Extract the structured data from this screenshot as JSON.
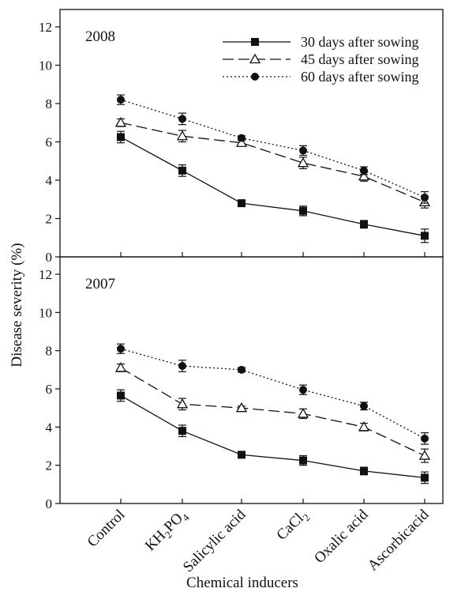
{
  "chart_data": {
    "type": "line",
    "xlabel": "Chemical inducers",
    "ylabel": "Disease severity (%)",
    "categories": [
      {
        "base": "Control",
        "sub": ""
      },
      {
        "base": "KH",
        "sub": "2",
        "mid": "PO",
        "sub2": "4"
      },
      {
        "base": "Salicylic acid",
        "sub": ""
      },
      {
        "base": "CaCl",
        "sub": "2"
      },
      {
        "base": "Oxalic acid",
        "sub": ""
      },
      {
        "base": "Ascorbicacid",
        "sub": ""
      }
    ],
    "legend_placement": "top-right",
    "series_styles": [
      {
        "marker": "square",
        "dash": "none"
      },
      {
        "marker": "triangle-open",
        "dash": "long-dash"
      },
      {
        "marker": "circle",
        "dash": "dot"
      }
    ],
    "panels": [
      {
        "label": "2008",
        "ylim": [
          0,
          12
        ],
        "yticks": [
          0,
          2,
          4,
          6,
          8,
          10,
          12
        ],
        "series": [
          {
            "name": "30 days after sowing",
            "values": [
              6.25,
              4.5,
              2.8,
              2.4,
              1.7,
              1.1
            ],
            "errors": [
              0.3,
              0.3,
              0.12,
              0.25,
              0.2,
              0.35
            ]
          },
          {
            "name": "45 days after sowing",
            "values": [
              7.0,
              6.3,
              5.95,
              4.9,
              4.2,
              2.85
            ],
            "errors": [
              0.2,
              0.3,
              0.15,
              0.3,
              0.25,
              0.3
            ]
          },
          {
            "name": "60 days after sowing",
            "values": [
              8.2,
              7.2,
              6.2,
              5.55,
              4.5,
              3.1
            ],
            "errors": [
              0.25,
              0.3,
              0.12,
              0.25,
              0.2,
              0.3
            ]
          }
        ]
      },
      {
        "label": "2007",
        "ylim": [
          0,
          12
        ],
        "yticks": [
          0,
          2,
          4,
          6,
          8,
          10,
          12
        ],
        "series": [
          {
            "name": "30 days after sowing",
            "values": [
              5.65,
              3.8,
              2.55,
              2.25,
              1.7,
              1.35
            ],
            "errors": [
              0.3,
              0.3,
              0.12,
              0.25,
              0.2,
              0.3
            ]
          },
          {
            "name": "45 days after sowing",
            "values": [
              7.1,
              5.2,
              5.0,
              4.7,
              4.0,
              2.5
            ],
            "errors": [
              0.2,
              0.3,
              0.1,
              0.25,
              0.2,
              0.35
            ]
          },
          {
            "name": "60 days after sowing",
            "values": [
              8.1,
              7.2,
              7.0,
              5.95,
              5.1,
              3.4
            ],
            "errors": [
              0.25,
              0.3,
              0.12,
              0.25,
              0.2,
              0.3
            ]
          }
        ]
      }
    ]
  }
}
